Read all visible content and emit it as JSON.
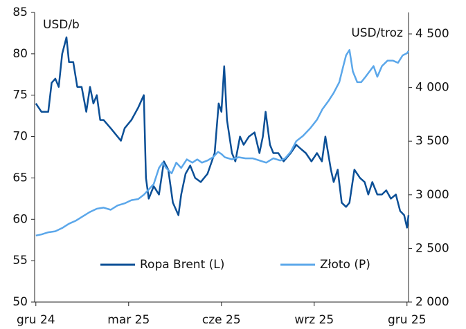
{
  "chart_data": {
    "type": "line",
    "ylabel": "USD/b",
    "y2label": "USD/troz",
    "xlim": [
      -0.04,
      12.05
    ],
    "xticks": [
      {
        "value": 0,
        "label": "gru 24"
      },
      {
        "value": 3,
        "label": "mar 25"
      },
      {
        "value": 6,
        "label": "cze 25"
      },
      {
        "value": 9,
        "label": "wrz 25"
      },
      {
        "value": 12,
        "label": "gru 25"
      }
    ],
    "ylim": [
      50,
      85
    ],
    "yticks": [
      50,
      55,
      60,
      65,
      70,
      75,
      80,
      85
    ],
    "y2lim": [
      2000,
      4700
    ],
    "y2ticks": [
      {
        "value": 2000,
        "label": "2 000"
      },
      {
        "value": 2500,
        "label": "2 500"
      },
      {
        "value": 3000,
        "label": "3 000"
      },
      {
        "value": 3500,
        "label": "3 500"
      },
      {
        "value": 4000,
        "label": "4 000"
      },
      {
        "value": 4500,
        "label": "4 500"
      }
    ],
    "grid": false,
    "legend": "bottom",
    "series": [
      {
        "name": "Ropa Brent (L)",
        "color": "#0b4f96",
        "axis": "y",
        "x": [
          0,
          0.18,
          0.4,
          0.51,
          0.63,
          0.74,
          0.85,
          0.99,
          1.07,
          1.21,
          1.34,
          1.48,
          1.63,
          1.75,
          1.86,
          1.97,
          2.08,
          2.19,
          2.42,
          2.64,
          2.75,
          2.87,
          3.09,
          3.31,
          3.49,
          3.56,
          3.65,
          3.81,
          3.98,
          4.14,
          4.28,
          4.43,
          4.61,
          4.7,
          4.84,
          4.99,
          5.15,
          5.33,
          5.55,
          5.69,
          5.78,
          5.91,
          6.0,
          6.09,
          6.18,
          6.34,
          6.45,
          6.6,
          6.72,
          6.89,
          7.07,
          7.23,
          7.34,
          7.43,
          7.57,
          7.68,
          7.84,
          8.01,
          8.24,
          8.42,
          8.57,
          8.73,
          8.91,
          9.09,
          9.25,
          9.36,
          9.54,
          9.63,
          9.76,
          9.89,
          10.03,
          10.14,
          10.3,
          10.48,
          10.63,
          10.75,
          10.88,
          11.04,
          11.19,
          11.33,
          11.48,
          11.64,
          11.78,
          11.91,
          12.0,
          12.05
        ],
        "values": [
          74,
          73,
          73,
          76.5,
          77,
          76,
          80,
          82,
          79,
          79,
          76,
          76,
          73,
          76,
          74,
          75,
          72,
          72,
          71,
          70,
          69.5,
          71,
          72,
          73.5,
          75,
          65,
          62.5,
          64,
          63,
          67,
          66,
          62,
          60.5,
          63,
          65.5,
          66.5,
          65,
          64.5,
          65.5,
          67,
          68,
          74,
          73,
          78.5,
          72,
          68,
          67,
          70,
          69,
          70,
          70.5,
          68,
          70,
          73,
          69,
          68,
          68,
          67,
          68,
          69,
          68.5,
          68,
          67,
          68,
          67,
          70,
          66,
          64.5,
          66,
          62,
          61.5,
          62,
          66,
          65,
          64.5,
          63,
          64.5,
          63,
          63,
          63.5,
          62.5,
          63,
          61,
          60.5,
          59,
          60.5
        ]
      },
      {
        "name": "Złoto (P)",
        "color": "#5ba7ea",
        "axis": "y2",
        "x": [
          0,
          0.18,
          0.4,
          0.63,
          0.85,
          1.07,
          1.3,
          1.52,
          1.75,
          1.97,
          2.19,
          2.42,
          2.64,
          2.87,
          3.09,
          3.31,
          3.49,
          3.65,
          3.81,
          3.98,
          4.1,
          4.21,
          4.39,
          4.54,
          4.7,
          4.88,
          5.06,
          5.22,
          5.37,
          5.55,
          5.73,
          5.89,
          6.0,
          6.11,
          6.34,
          6.56,
          6.78,
          7.01,
          7.23,
          7.45,
          7.68,
          7.9,
          8.06,
          8.24,
          8.42,
          8.64,
          8.87,
          9.09,
          9.27,
          9.45,
          9.63,
          9.81,
          9.94,
          10.03,
          10.14,
          10.25,
          10.39,
          10.52,
          10.66,
          10.79,
          10.92,
          11.04,
          11.19,
          11.37,
          11.55,
          11.71,
          11.86,
          12.0,
          12.05
        ],
        "values": [
          2620,
          2630,
          2650,
          2660,
          2690,
          2730,
          2760,
          2800,
          2840,
          2870,
          2880,
          2860,
          2900,
          2920,
          2950,
          2960,
          3000,
          3050,
          3100,
          3250,
          3300,
          3250,
          3200,
          3300,
          3250,
          3330,
          3300,
          3330,
          3300,
          3320,
          3350,
          3400,
          3380,
          3350,
          3330,
          3350,
          3340,
          3340,
          3320,
          3300,
          3340,
          3320,
          3340,
          3400,
          3500,
          3550,
          3620,
          3700,
          3800,
          3870,
          3950,
          4050,
          4200,
          4300,
          4350,
          4150,
          4050,
          4050,
          4100,
          4150,
          4200,
          4100,
          4200,
          4250,
          4250,
          4230,
          4300,
          4320,
          4340
        ]
      }
    ]
  }
}
